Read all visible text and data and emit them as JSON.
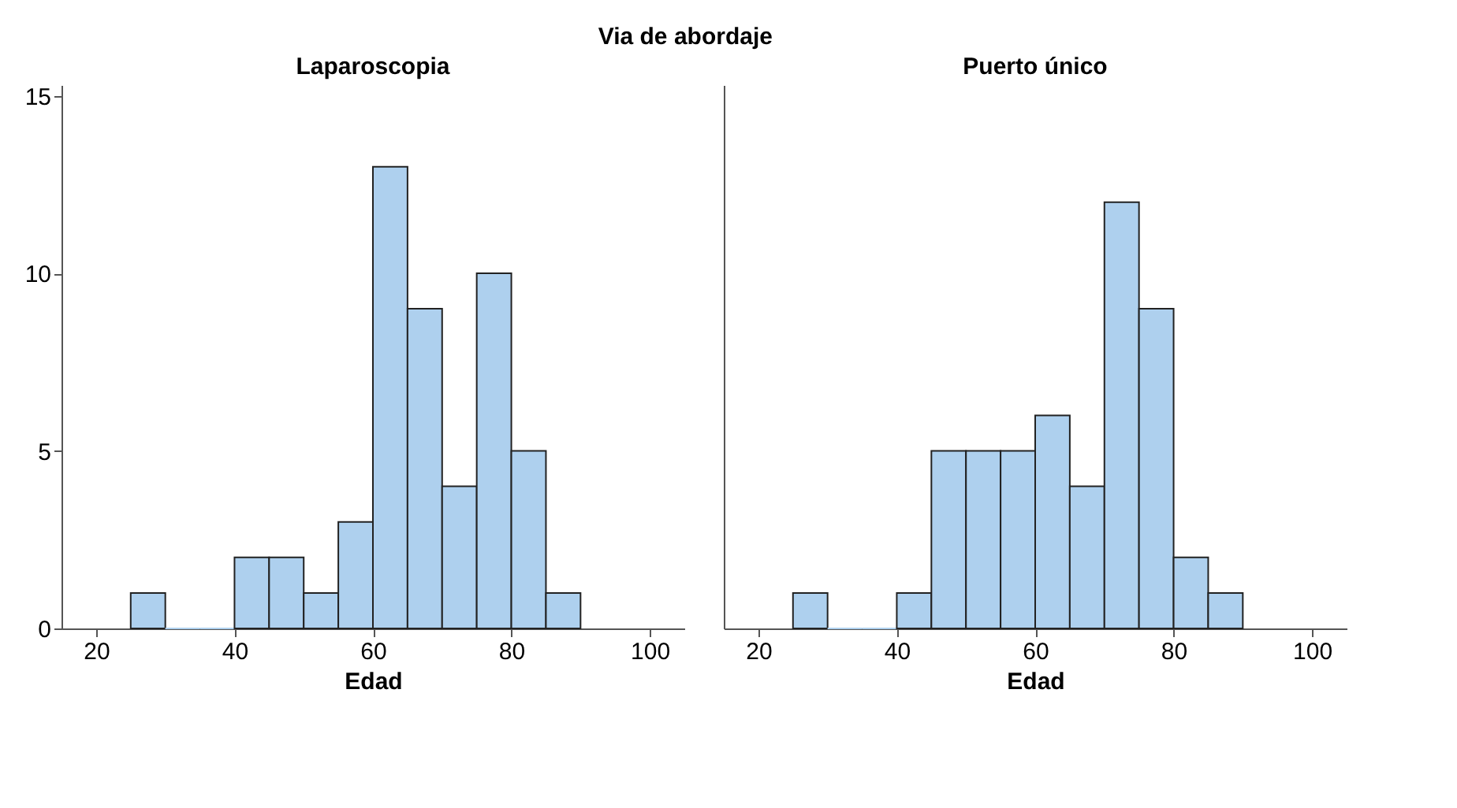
{
  "chart_data": [
    {
      "type": "histogram",
      "title": "Laparoscopia",
      "annotations": [
        "Via de abordaje"
      ],
      "xlabel": "Edad",
      "bins": [
        25,
        30,
        35,
        40,
        45,
        50,
        55,
        60,
        65,
        70,
        75,
        80,
        85,
        90
      ],
      "values": [
        1,
        0,
        0,
        2,
        2,
        1,
        3,
        13,
        9,
        4,
        10,
        5,
        1
      ],
      "color": "#aed0ee",
      "xlim": [
        15,
        105
      ],
      "xticks": [
        20,
        40,
        60,
        80,
        100
      ],
      "ylim": [
        0,
        15.3
      ],
      "yticks": [
        0,
        5,
        10,
        15
      ],
      "grid": false
    },
    {
      "type": "histogram",
      "title": "Puerto único",
      "xlabel": "Edad",
      "bins": [
        25,
        30,
        35,
        40,
        45,
        50,
        55,
        60,
        65,
        70,
        75,
        80,
        85,
        90
      ],
      "values": [
        1,
        0,
        0,
        1,
        5,
        5,
        5,
        6,
        4,
        12,
        9,
        2,
        1
      ],
      "color": "#aed0ee",
      "xlim": [
        15,
        105
      ],
      "xticks": [
        20,
        40,
        60,
        80,
        100
      ],
      "ylim": [
        0,
        15.3
      ],
      "yticks": [
        0,
        5,
        10,
        15
      ],
      "tick_labels": "x",
      "grid": false
    }
  ]
}
